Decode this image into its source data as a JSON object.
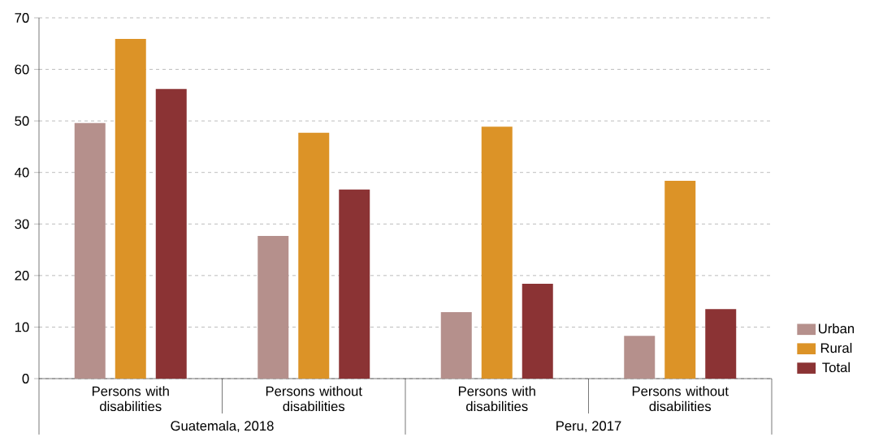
{
  "chart_data": {
    "type": "bar",
    "categories": [
      "Persons with disabilities",
      "Persons without disabilities",
      "Persons with disabilities",
      "Persons without disabilities"
    ],
    "series": [
      {
        "name": "Urban",
        "color": "#b5908c",
        "values": [
          49.6,
          27.7,
          12.9,
          8.3
        ]
      },
      {
        "name": "Rural",
        "color": "#dc9327",
        "values": [
          65.9,
          47.7,
          48.9,
          38.4
        ]
      },
      {
        "name": "Total",
        "color": "#8b3334",
        "values": [
          56.2,
          36.7,
          18.4,
          13.5
        ]
      }
    ],
    "annotations": [
      "Guatemala, 2018",
      "Peru, 2017"
    ],
    "ylim": [
      0,
      70
    ],
    "yticks": [
      0,
      10,
      20,
      30,
      40,
      50,
      60,
      70
    ],
    "grid": "y",
    "legend": "right"
  }
}
